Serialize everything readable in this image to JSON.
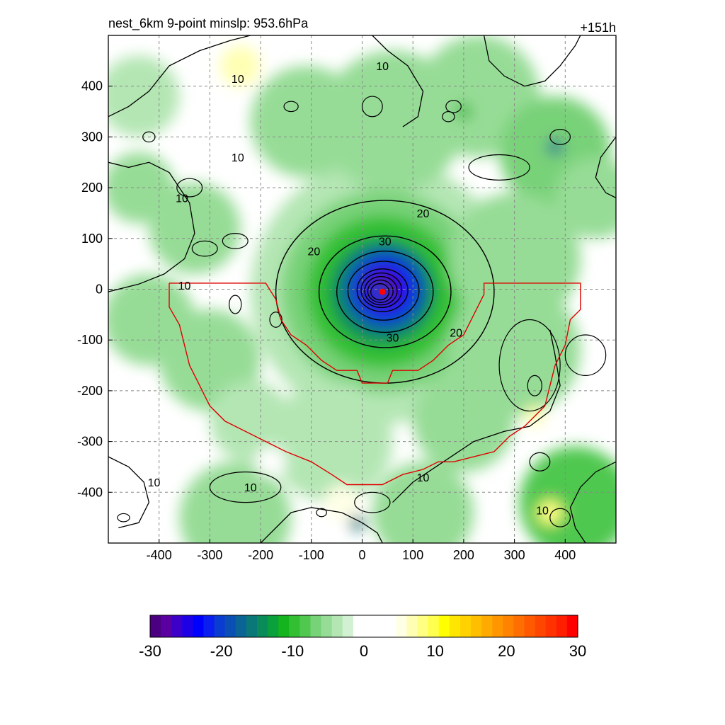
{
  "chart_data": {
    "type": "heatmap",
    "title": "nest_6km  9-point minslp: 953.6hPa",
    "time_label": "+151h",
    "xlim": [
      -500,
      500
    ],
    "ylim": [
      -500,
      500
    ],
    "x_ticks": [
      -400,
      -300,
      -200,
      -100,
      0,
      100,
      200,
      300,
      400
    ],
    "x_tick_labels": [
      "-400",
      "-300",
      "-200",
      "-100",
      "0",
      "100",
      "200",
      "300",
      "400"
    ],
    "y_ticks": [
      400,
      300,
      200,
      100,
      0,
      -100,
      -200,
      -300,
      -400
    ],
    "y_tick_labels": [
      "400",
      "300",
      "200",
      "100",
      "0",
      "-100",
      "-200",
      "-300",
      "-400"
    ],
    "grid": true,
    "center": [
      40,
      -5
    ],
    "contour_levels": [
      10,
      20,
      30
    ],
    "contour_labels": [
      {
        "text": "10",
        "x": -245,
        "y": 260
      },
      {
        "text": "10",
        "x": -355,
        "y": 180
      },
      {
        "text": "10",
        "x": -350,
        "y": 8
      },
      {
        "text": "10",
        "x": -245,
        "y": 415
      },
      {
        "text": "10",
        "x": 40,
        "y": 440
      },
      {
        "text": "10",
        "x": -410,
        "y": -380
      },
      {
        "text": "10",
        "x": -220,
        "y": -390
      },
      {
        "text": "10",
        "x": 120,
        "y": -370
      },
      {
        "text": "10",
        "x": 355,
        "y": -435
      },
      {
        "text": "20",
        "x": 120,
        "y": 150
      },
      {
        "text": "20",
        "x": -95,
        "y": 75
      },
      {
        "text": "20",
        "x": 185,
        "y": -85
      },
      {
        "text": "30",
        "x": 45,
        "y": 95
      },
      {
        "text": "30",
        "x": 60,
        "y": -95
      }
    ],
    "colorbar": {
      "min": -30,
      "max": 30,
      "tick_values": [
        -30,
        -20,
        -10,
        0,
        10,
        20,
        30
      ],
      "tick_labels": [
        "-30",
        "-20",
        "-10",
        "0",
        "10",
        "20",
        "30"
      ],
      "colors": [
        "#4b0082",
        "#5b00a0",
        "#3c00c8",
        "#1e00e6",
        "#0000ff",
        "#0a1ef0",
        "#0a3cd2",
        "#0a50b4",
        "#0a6496",
        "#0a7878",
        "#0a8c5a",
        "#0aa03c",
        "#14b41e",
        "#32c032",
        "#50c850",
        "#78d278",
        "#96dc96",
        "#b4e6b4",
        "#d2f0d2",
        "#ffffff",
        "#ffffff",
        "#ffffff",
        "#ffffff",
        "#ffffe6",
        "#ffffb4",
        "#ffff82",
        "#ffff50",
        "#ffff00",
        "#ffe600",
        "#ffd200",
        "#ffbe00",
        "#ffaa00",
        "#ff9600",
        "#ff8200",
        "#ff6e00",
        "#ff5a00",
        "#ff4600",
        "#ff3200",
        "#ff1e00",
        "#ff0000"
      ]
    },
    "fill_blobs": [
      {
        "x": 40,
        "y": -5,
        "r": 260,
        "value": -4
      },
      {
        "x": 40,
        "y": -5,
        "r": 200,
        "value": -7
      },
      {
        "x": 40,
        "y": -5,
        "r": 150,
        "value": -10
      },
      {
        "x": 40,
        "y": -5,
        "r": 105,
        "value": -14
      },
      {
        "x": 45,
        "y": 0,
        "r": 80,
        "value": -19
      },
      {
        "x": 45,
        "y": 0,
        "r": 55,
        "value": -24
      },
      {
        "x": 40,
        "y": 0,
        "r": 35,
        "value": -28
      },
      {
        "x": 35,
        "y": -5,
        "r": 20,
        "value": -20
      },
      {
        "x": -440,
        "y": 200,
        "r": 70,
        "value": -6
      },
      {
        "x": -330,
        "y": 120,
        "r": 90,
        "value": -6
      },
      {
        "x": -420,
        "y": -60,
        "r": 90,
        "value": -5
      },
      {
        "x": -300,
        "y": -140,
        "r": 100,
        "value": -5
      },
      {
        "x": -220,
        "y": -260,
        "r": 80,
        "value": -4
      },
      {
        "x": -110,
        "y": 330,
        "r": 110,
        "value": -5
      },
      {
        "x": 60,
        "y": 330,
        "r": 140,
        "value": -5
      },
      {
        "x": 230,
        "y": 380,
        "r": 120,
        "value": -5
      },
      {
        "x": 380,
        "y": 270,
        "r": 110,
        "value": -7
      },
      {
        "x": 460,
        "y": 180,
        "r": 80,
        "value": -6
      },
      {
        "x": 300,
        "y": 60,
        "r": 130,
        "value": -6
      },
      {
        "x": 300,
        "y": -120,
        "r": 130,
        "value": -6
      },
      {
        "x": 200,
        "y": -260,
        "r": 100,
        "value": -6
      },
      {
        "x": -60,
        "y": -300,
        "r": 120,
        "value": -4
      },
      {
        "x": 120,
        "y": -440,
        "r": 100,
        "value": -5
      },
      {
        "x": -250,
        "y": -450,
        "r": 110,
        "value": -6
      },
      {
        "x": 420,
        "y": -420,
        "r": 110,
        "value": -9
      },
      {
        "x": -440,
        "y": 380,
        "r": 80,
        "value": -4
      },
      {
        "x": -240,
        "y": 440,
        "r": 40,
        "value": 6
      },
      {
        "x": -40,
        "y": -420,
        "r": 35,
        "value": 5
      },
      {
        "x": -180,
        "y": -340,
        "r": 30,
        "value": 4
      },
      {
        "x": 370,
        "y": -440,
        "r": 25,
        "value": 8
      },
      {
        "x": 340,
        "y": -250,
        "r": 20,
        "value": 7
      },
      {
        "x": -10,
        "y": -460,
        "r": 15,
        "value": -16
      },
      {
        "x": 380,
        "y": 280,
        "r": 15,
        "value": -18
      },
      {
        "x": 200,
        "y": 350,
        "r": 15,
        "value": -12
      }
    ],
    "contour_rings": [
      {
        "x": 45,
        "y": -5,
        "rx": 215,
        "ry": 180,
        "level": 20
      },
      {
        "x": 45,
        "y": -5,
        "rx": 130,
        "ry": 110,
        "level": 30
      },
      {
        "x": 45,
        "y": -5,
        "rx": 95,
        "ry": 80,
        "level": 35
      },
      {
        "x": 42,
        "y": -3,
        "rx": 70,
        "ry": 58,
        "level": 40
      },
      {
        "x": 40,
        "y": -2,
        "rx": 50,
        "ry": 42,
        "level": 45
      },
      {
        "x": 38,
        "y": -2,
        "rx": 40,
        "ry": 34,
        "level": 50
      },
      {
        "x": 37,
        "y": -3,
        "rx": 32,
        "ry": 28,
        "level": 55
      },
      {
        "x": 36,
        "y": -4,
        "rx": 25,
        "ry": 22,
        "level": 60
      },
      {
        "x": 35,
        "y": -5,
        "rx": 18,
        "ry": 16,
        "level": 65
      }
    ],
    "small_contours": [
      {
        "x": -250,
        "y": 95,
        "rx": 25,
        "ry": 15
      },
      {
        "x": -310,
        "y": 80,
        "rx": 25,
        "ry": 15
      },
      {
        "x": 20,
        "y": 360,
        "rx": 20,
        "ry": 20
      },
      {
        "x": 180,
        "y": 360,
        "rx": 15,
        "ry": 12
      },
      {
        "x": 270,
        "y": 240,
        "rx": 60,
        "ry": 25
      },
      {
        "x": 390,
        "y": 300,
        "rx": 20,
        "ry": 15
      },
      {
        "x": -420,
        "y": 300,
        "rx": 12,
        "ry": 10
      },
      {
        "x": -340,
        "y": 200,
        "rx": 25,
        "ry": 18
      },
      {
        "x": -250,
        "y": -30,
        "rx": 12,
        "ry": 18
      },
      {
        "x": -170,
        "y": -60,
        "rx": 12,
        "ry": 15
      },
      {
        "x": 330,
        "y": -150,
        "rx": 60,
        "ry": 90
      },
      {
        "x": 440,
        "y": -130,
        "rx": 40,
        "ry": 40
      },
      {
        "x": 350,
        "y": -340,
        "rx": 20,
        "ry": 18
      },
      {
        "x": -230,
        "y": -390,
        "rx": 70,
        "ry": 30
      },
      {
        "x": 20,
        "y": -420,
        "rx": 35,
        "ry": 20
      },
      {
        "x": 390,
        "y": -450,
        "rx": 20,
        "ry": 18
      },
      {
        "x": -470,
        "y": -450,
        "rx": 12,
        "ry": 8
      },
      {
        "x": -80,
        "y": -440,
        "rx": 10,
        "ry": 8
      },
      {
        "x": -140,
        "y": 360,
        "rx": 14,
        "ry": 10
      },
      {
        "x": 170,
        "y": 340,
        "rx": 12,
        "ry": 10
      },
      {
        "x": 340,
        "y": -190,
        "rx": 14,
        "ry": 20
      }
    ],
    "outer_contours": [
      [
        [
          -500,
          340
        ],
        [
          -460,
          360
        ],
        [
          -420,
          390
        ],
        [
          -380,
          440
        ],
        [
          -320,
          470
        ],
        [
          -260,
          490
        ],
        [
          -220,
          500
        ]
      ],
      [
        [
          -500,
          250
        ],
        [
          -460,
          240
        ],
        [
          -420,
          250
        ],
        [
          -380,
          230
        ],
        [
          -340,
          170
        ],
        [
          -330,
          110
        ],
        [
          -350,
          60
        ],
        [
          -390,
          30
        ],
        [
          -440,
          10
        ],
        [
          -500,
          -5
        ]
      ],
      [
        [
          -500,
          -330
        ],
        [
          -460,
          -350
        ],
        [
          -430,
          -380
        ],
        [
          -420,
          -420
        ],
        [
          -440,
          -460
        ],
        [
          -480,
          -470
        ]
      ],
      [
        [
          -200,
          -500
        ],
        [
          -170,
          -470
        ],
        [
          -140,
          -440
        ],
        [
          -100,
          -430
        ],
        [
          -40,
          -440
        ],
        [
          0,
          -460
        ],
        [
          30,
          -480
        ],
        [
          40,
          -500
        ]
      ],
      [
        [
          60,
          -420
        ],
        [
          100,
          -380
        ],
        [
          160,
          -340
        ],
        [
          220,
          -300
        ],
        [
          280,
          -280
        ],
        [
          330,
          -270
        ],
        [
          370,
          -240
        ],
        [
          390,
          -190
        ],
        [
          380,
          -130
        ],
        [
          370,
          -80
        ]
      ],
      [
        [
          500,
          -340
        ],
        [
          460,
          -360
        ],
        [
          430,
          -390
        ],
        [
          410,
          -430
        ],
        [
          420,
          -470
        ],
        [
          440,
          -500
        ]
      ],
      [
        [
          240,
          500
        ],
        [
          250,
          450
        ],
        [
          280,
          420
        ],
        [
          320,
          400
        ],
        [
          360,
          410
        ],
        [
          390,
          440
        ],
        [
          420,
          480
        ],
        [
          430,
          500
        ]
      ],
      [
        [
          20,
          500
        ],
        [
          50,
          470
        ],
        [
          90,
          440
        ],
        [
          120,
          390
        ],
        [
          110,
          340
        ],
        [
          80,
          320
        ]
      ],
      [
        [
          500,
          300
        ],
        [
          470,
          260
        ],
        [
          460,
          220
        ],
        [
          480,
          190
        ],
        [
          500,
          180
        ]
      ]
    ],
    "region_outline": [
      [
        -380,
        12
      ],
      [
        -190,
        12
      ],
      [
        -170,
        -20
      ],
      [
        -160,
        -60
      ],
      [
        -140,
        -90
      ],
      [
        -110,
        -110
      ],
      [
        -80,
        -140
      ],
      [
        -50,
        -160
      ],
      [
        -10,
        -160
      ],
      [
        0,
        -185
      ],
      [
        50,
        -185
      ],
      [
        60,
        -160
      ],
      [
        110,
        -160
      ],
      [
        140,
        -140
      ],
      [
        170,
        -110
      ],
      [
        200,
        -90
      ],
      [
        220,
        -50
      ],
      [
        240,
        -10
      ],
      [
        240,
        12
      ],
      [
        430,
        12
      ],
      [
        430,
        -40
      ],
      [
        410,
        -60
      ],
      [
        400,
        -110
      ],
      [
        380,
        -150
      ],
      [
        370,
        -190
      ],
      [
        360,
        -230
      ],
      [
        340,
        -250
      ],
      [
        320,
        -270
      ],
      [
        290,
        -290
      ],
      [
        260,
        -320
      ],
      [
        220,
        -330
      ],
      [
        180,
        -340
      ],
      [
        150,
        -340
      ],
      [
        120,
        -355
      ],
      [
        80,
        -365
      ],
      [
        40,
        -385
      ],
      [
        -30,
        -385
      ],
      [
        -60,
        -365
      ],
      [
        -100,
        -340
      ],
      [
        -150,
        -320
      ],
      [
        -190,
        -300
      ],
      [
        -230,
        -280
      ],
      [
        -270,
        -260
      ],
      [
        -300,
        -230
      ],
      [
        -320,
        -190
      ],
      [
        -340,
        -150
      ],
      [
        -350,
        -110
      ],
      [
        -360,
        -70
      ],
      [
        -380,
        -35
      ],
      [
        -380,
        12
      ]
    ]
  }
}
